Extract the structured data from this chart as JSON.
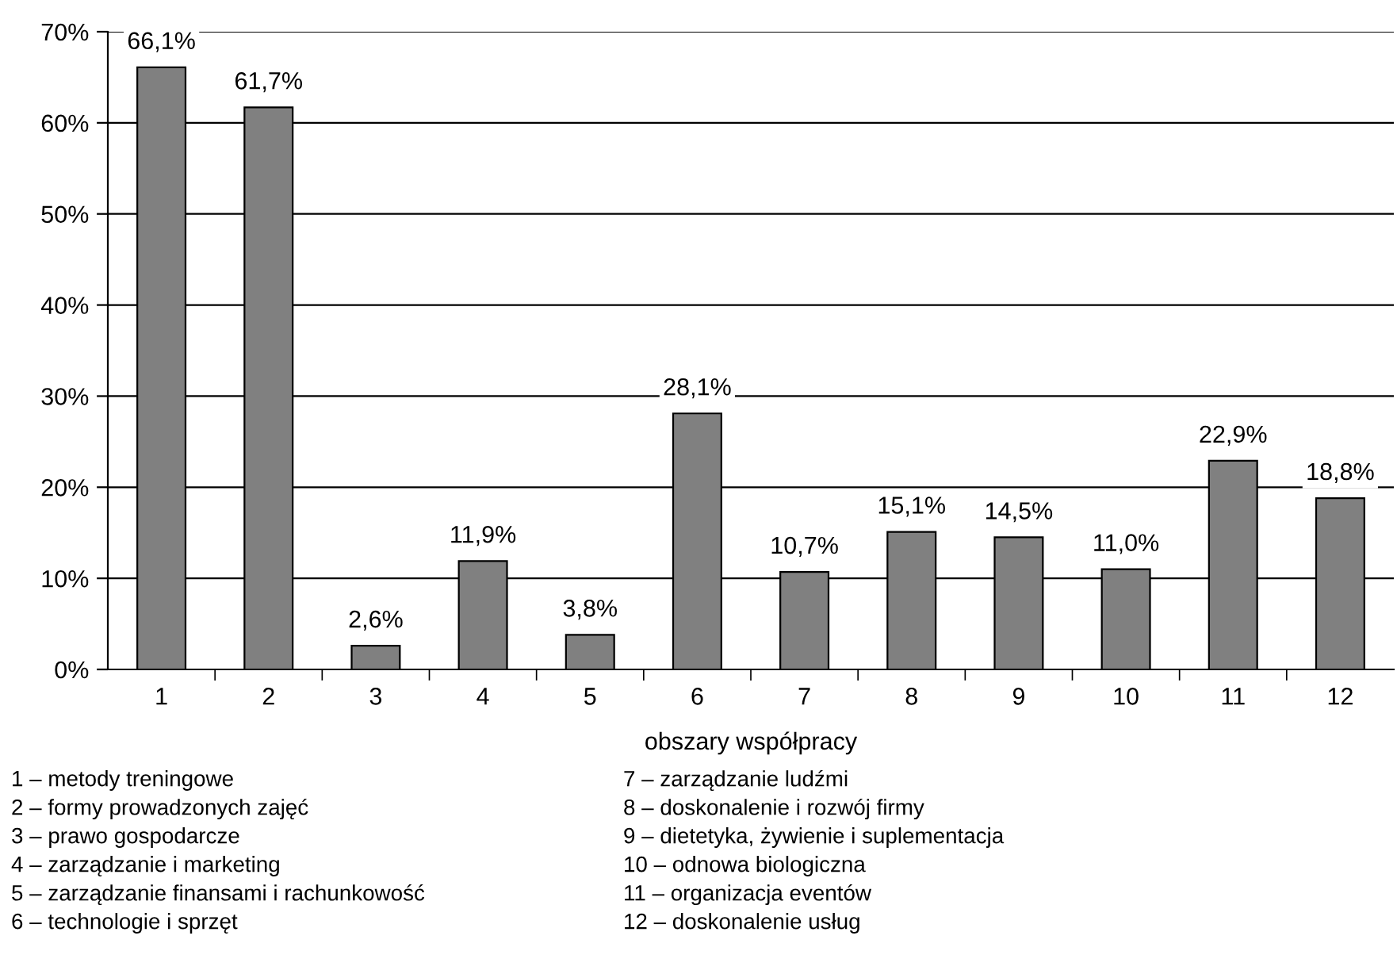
{
  "chart_data": {
    "type": "bar",
    "categories": [
      "1",
      "2",
      "3",
      "4",
      "5",
      "6",
      "7",
      "8",
      "9",
      "10",
      "11",
      "12"
    ],
    "values": [
      66.1,
      61.7,
      2.6,
      11.9,
      3.8,
      28.1,
      10.7,
      15.1,
      14.5,
      11.0,
      22.9,
      18.8
    ],
    "value_labels": [
      "66,1%",
      "61,7%",
      "2,6%",
      "11,9%",
      "3,8%",
      "28,1%",
      "10,7%",
      "15,1%",
      "14,5%",
      "11,0%",
      "22,9%",
      "18,8%"
    ],
    "color": "#808080",
    "xlabel": "obszary współpracy",
    "ylim": [
      0,
      70
    ],
    "yticks": [
      {
        "value": 0,
        "label": "0%"
      },
      {
        "value": 10,
        "label": "10%"
      },
      {
        "value": 20,
        "label": "20%"
      },
      {
        "value": 30,
        "label": "30%"
      },
      {
        "value": 40,
        "label": "40%"
      },
      {
        "value": 50,
        "label": "50%"
      },
      {
        "value": 60,
        "label": "60%"
      },
      {
        "value": 70,
        "label": "70%"
      }
    ],
    "grid": "y",
    "annotations": [
      "1 – metody treningowe",
      "2 – formy prowadzonych zajęć",
      "3 – prawo gospodarcze",
      "4 – zarządzanie i marketing",
      "5 – zarządzanie finansami i rachunkowość",
      "6 – technologie i sprzęt",
      "7 – zarządzanie ludźmi",
      "8 – doskonalenie i rozwój firmy",
      "9 – dietetyka, żywienie i suplementacja",
      "10 – odnowa biologiczna",
      "11 – organizacja eventów",
      "12 – doskonalenie usług"
    ]
  }
}
